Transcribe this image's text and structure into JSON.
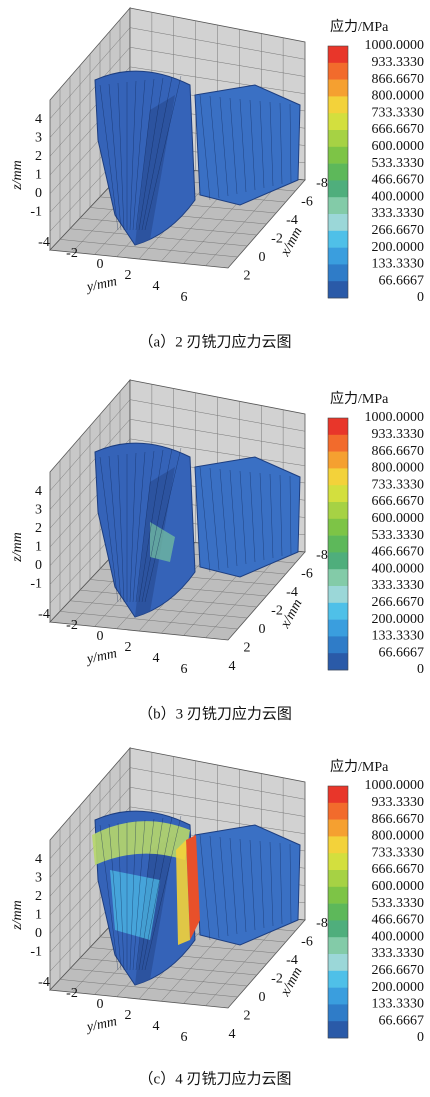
{
  "panels": [
    {
      "caption": "（a）2 刃铣刀应力云图",
      "colorbar": {
        "title": "应力/MPa",
        "labels": [
          "1000.0000",
          "933.3330",
          "866.6670",
          "800.0000",
          "733.3330",
          "666.6670",
          "600.0000",
          "533.3330",
          "466.6670",
          "400.0000",
          "333.3330",
          "266.6670",
          "200.0000",
          "133.3330",
          "66.6667",
          "0"
        ]
      },
      "z_label": "z/mm",
      "z_ticks": [
        "4",
        "3",
        "2",
        "1",
        "0",
        "-1"
      ],
      "y_label": "y/mm",
      "y_ticks": [
        "-4",
        "-2",
        "0",
        "2",
        "4",
        "6"
      ],
      "x_label": "x/mm",
      "x_ticks": [
        "-8",
        "-6",
        "-4",
        "-2",
        "0",
        "2"
      ]
    },
    {
      "caption": "（b）3 刃铣刀应力云图",
      "colorbar": {
        "title": "应力/MPa",
        "labels": [
          "1000.0000",
          "933.3330",
          "866.6670",
          "800.0000",
          "733.3330",
          "666.6670",
          "600.0000",
          "533.3330",
          "466.6670",
          "400.0000",
          "333.3330",
          "266.6670",
          "200.0000",
          "133.3330",
          "66.6667",
          "0"
        ]
      },
      "z_label": "z/mm",
      "z_ticks": [
        "4",
        "3",
        "2",
        "1",
        "0",
        "-1"
      ],
      "y_label": "y/mm",
      "y_ticks": [
        "-4",
        "-2",
        "0",
        "2",
        "4",
        "6"
      ],
      "x_label": "x/mm",
      "x_ticks": [
        "-8",
        "-6",
        "-4",
        "-2",
        "0",
        "2",
        "4"
      ]
    },
    {
      "caption": "（c）4 刃铣刀应力云图",
      "colorbar": {
        "title": "应力/MPa",
        "labels": [
          "1000.0000",
          "933.3330",
          "866.6670",
          "800.0000",
          "733.3330",
          "666.6670",
          "600.0000",
          "533.3330",
          "466.6670",
          "400.0000",
          "333.3330",
          "266.6670",
          "200.0000",
          "133.3330",
          "66.6667",
          "0"
        ]
      },
      "z_label": "z/mm",
      "z_ticks": [
        "4",
        "3",
        "2",
        "1",
        "0",
        "-1"
      ],
      "y_label": "y/mm",
      "y_ticks": [
        "-4",
        "-2",
        "0",
        "2",
        "4",
        "6"
      ],
      "x_label": "x/mm",
      "x_ticks": [
        "-8",
        "-6",
        "-4",
        "-2",
        "0",
        "2",
        "4"
      ]
    }
  ]
}
